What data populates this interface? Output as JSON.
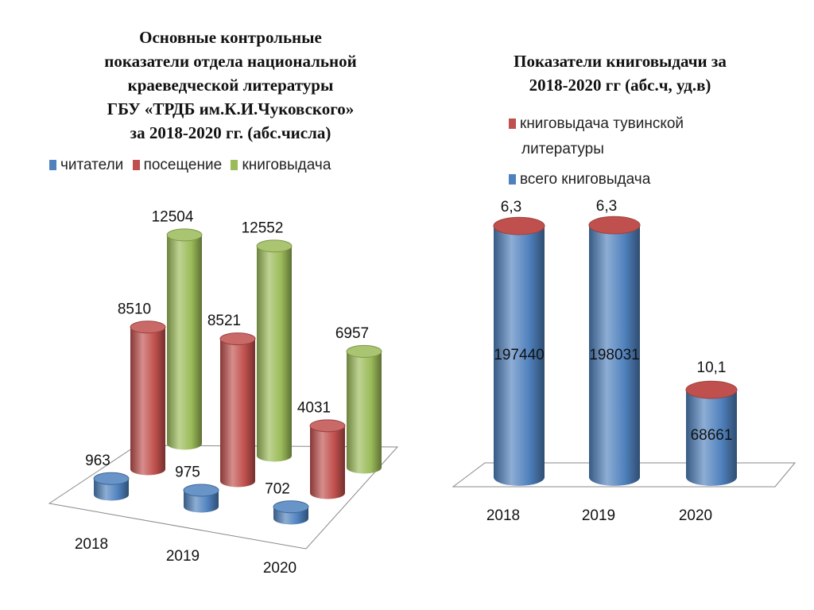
{
  "chart_data": [
    {
      "type": "bar",
      "style": "3d-cylinder",
      "title": "Основные контрольные\nпоказатели отдела национальной\nкраеведческой литературы\nГБУ «ТРДБ им.К.И.Чуковского»\nза 2018-2020 гг. (абс.числа)",
      "categories": [
        "2018",
        "2019",
        "2020"
      ],
      "series": [
        {
          "name": "читатели",
          "color": "#4f81bd",
          "values": [
            963,
            975,
            702
          ]
        },
        {
          "name": "посещение",
          "color": "#c0504d",
          "values": [
            8510,
            8521,
            4031
          ]
        },
        {
          "name": "книговыдача",
          "color": "#9bbb59",
          "values": [
            12504,
            12552,
            6957
          ]
        }
      ],
      "legend": "top",
      "grid": false
    },
    {
      "type": "bar",
      "style": "3d-cylinder-stacked",
      "title": "Показатели книговыдачи за\n2018-2020 гг (абс.ч, уд.в)",
      "categories": [
        "2018",
        "2019",
        "2020"
      ],
      "series": [
        {
          "name": "книговыдача тувинской литературы",
          "color": "#c0504d",
          "values": [
            6.3,
            6.3,
            10.1
          ],
          "labels": [
            "6,3",
            "6,3",
            "10,1"
          ]
        },
        {
          "name": "всего книговыдача",
          "color": "#4f81bd",
          "values": [
            197440,
            198031,
            68661
          ]
        }
      ],
      "legend": "top-right",
      "grid": false
    }
  ]
}
